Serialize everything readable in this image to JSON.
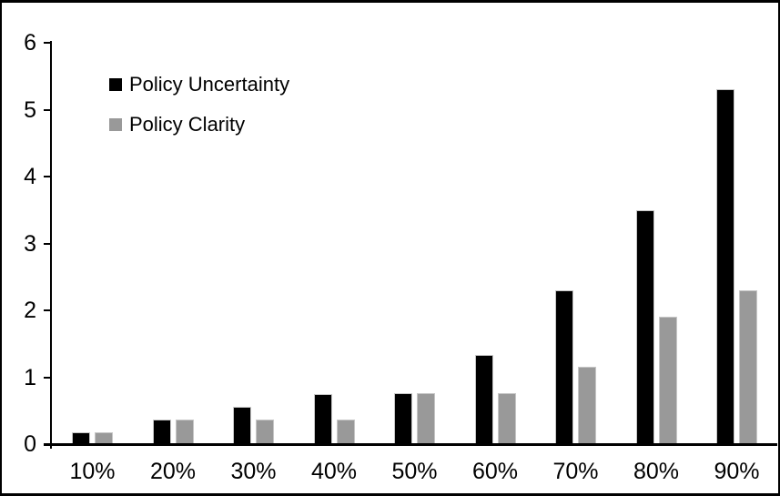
{
  "chart_data": {
    "type": "bar",
    "title": "",
    "xlabel": "",
    "ylabel": "",
    "categories": [
      "10%",
      "20%",
      "30%",
      "40%",
      "50%",
      "60%",
      "70%",
      "80%",
      "90%"
    ],
    "series": [
      {
        "name": "Policy Uncertainty",
        "color": "#000000",
        "values": [
          0.18,
          0.37,
          0.56,
          0.75,
          0.76,
          1.33,
          2.3,
          3.5,
          5.3
        ]
      },
      {
        "name": "Policy Clarity",
        "color": "#999999",
        "values": [
          0.18,
          0.37,
          0.37,
          0.37,
          0.76,
          0.76,
          1.15,
          1.9,
          2.3
        ]
      }
    ],
    "ylim": [
      0,
      6
    ],
    "yticks": [
      0,
      1,
      2,
      3,
      4,
      5,
      6
    ],
    "grid": false,
    "legend_position": "top-left"
  },
  "frame": {
    "background": "#ffffff",
    "border_color": "#000000",
    "axis_color": "#000000",
    "text_color": "#000000"
  }
}
